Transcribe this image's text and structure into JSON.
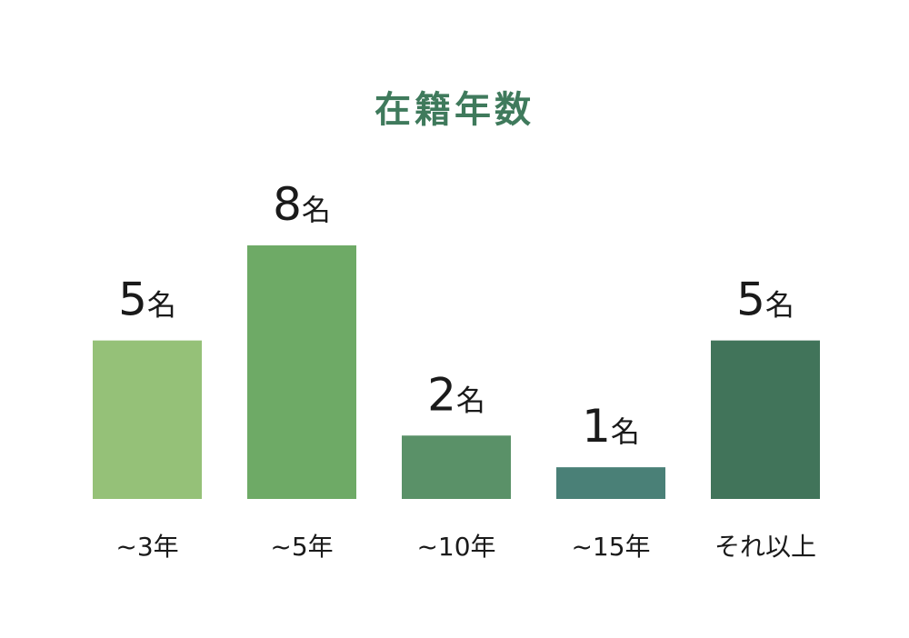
{
  "chart_data": {
    "type": "bar",
    "title": "在籍年数",
    "categories": [
      "~3年",
      "~5年",
      "~10年",
      "~15年",
      "それ以上"
    ],
    "values": [
      5,
      8,
      2,
      1,
      5
    ],
    "value_labels": [
      "5名",
      "8名",
      "2名",
      "1名",
      "5名"
    ],
    "colors": [
      "#95c178",
      "#6eaa66",
      "#5a9168",
      "#4a8077",
      "#41745a"
    ],
    "title_color": "#3f7a5c"
  }
}
